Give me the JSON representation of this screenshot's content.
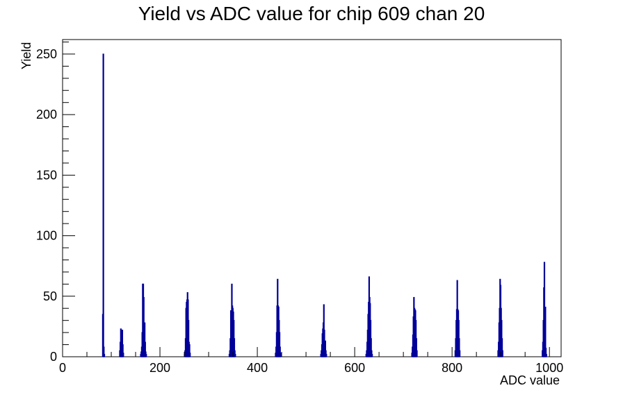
{
  "chart_data": {
    "type": "bar",
    "title": "Yield vs ADC value for chip 609 chan 20",
    "xlabel": "ADC value",
    "ylabel": "Yield",
    "xlim": [
      0,
      1024
    ],
    "ylim": [
      0,
      262
    ],
    "x_ticks": [
      0,
      200,
      400,
      600,
      800,
      1000
    ],
    "y_ticks": [
      0,
      50,
      100,
      150,
      200,
      250
    ],
    "bin_width": 1,
    "color": "#000099",
    "grid": false,
    "legend": "none",
    "bins": [
      [
        82,
        35
      ],
      [
        83,
        250
      ],
      [
        84,
        8
      ],
      [
        85,
        2
      ],
      [
        117,
        5
      ],
      [
        118,
        12
      ],
      [
        119,
        23
      ],
      [
        120,
        22
      ],
      [
        121,
        14
      ],
      [
        122,
        22
      ],
      [
        123,
        10
      ],
      [
        124,
        3
      ],
      [
        160,
        2
      ],
      [
        161,
        4
      ],
      [
        162,
        8
      ],
      [
        163,
        20
      ],
      [
        164,
        60
      ],
      [
        165,
        60
      ],
      [
        166,
        49
      ],
      [
        167,
        25
      ],
      [
        168,
        28
      ],
      [
        169,
        12
      ],
      [
        170,
        4
      ],
      [
        171,
        2
      ],
      [
        250,
        2
      ],
      [
        251,
        5
      ],
      [
        252,
        15
      ],
      [
        253,
        40
      ],
      [
        254,
        45
      ],
      [
        255,
        47
      ],
      [
        256,
        53
      ],
      [
        257,
        47
      ],
      [
        258,
        30
      ],
      [
        259,
        12
      ],
      [
        260,
        10
      ],
      [
        261,
        3
      ],
      [
        342,
        2
      ],
      [
        343,
        5
      ],
      [
        344,
        15
      ],
      [
        345,
        38
      ],
      [
        346,
        38
      ],
      [
        347,
        60
      ],
      [
        348,
        42
      ],
      [
        349,
        40
      ],
      [
        350,
        37
      ],
      [
        351,
        30
      ],
      [
        352,
        15
      ],
      [
        353,
        5
      ],
      [
        354,
        2
      ],
      [
        437,
        3
      ],
      [
        438,
        8
      ],
      [
        439,
        20
      ],
      [
        440,
        42
      ],
      [
        441,
        64
      ],
      [
        442,
        42
      ],
      [
        443,
        41
      ],
      [
        444,
        30
      ],
      [
        445,
        20
      ],
      [
        446,
        8
      ],
      [
        447,
        3
      ],
      [
        530,
        2
      ],
      [
        531,
        5
      ],
      [
        532,
        10
      ],
      [
        533,
        19
      ],
      [
        534,
        23
      ],
      [
        535,
        28
      ],
      [
        536,
        43
      ],
      [
        537,
        22
      ],
      [
        538,
        13
      ],
      [
        539,
        13
      ],
      [
        540,
        5
      ],
      [
        541,
        2
      ],
      [
        623,
        2
      ],
      [
        624,
        5
      ],
      [
        625,
        12
      ],
      [
        626,
        22
      ],
      [
        627,
        35
      ],
      [
        628,
        45
      ],
      [
        629,
        66
      ],
      [
        630,
        49
      ],
      [
        631,
        44
      ],
      [
        632,
        30
      ],
      [
        633,
        15
      ],
      [
        634,
        5
      ],
      [
        635,
        2
      ],
      [
        717,
        3
      ],
      [
        718,
        8
      ],
      [
        719,
        18
      ],
      [
        720,
        33
      ],
      [
        721,
        49
      ],
      [
        722,
        40
      ],
      [
        723,
        39
      ],
      [
        724,
        38
      ],
      [
        725,
        30
      ],
      [
        726,
        15
      ],
      [
        727,
        5
      ],
      [
        806,
        5
      ],
      [
        807,
        15
      ],
      [
        808,
        30
      ],
      [
        809,
        39
      ],
      [
        810,
        63
      ],
      [
        811,
        39
      ],
      [
        812,
        38
      ],
      [
        813,
        30
      ],
      [
        814,
        15
      ],
      [
        815,
        5
      ],
      [
        894,
        5
      ],
      [
        895,
        12
      ],
      [
        896,
        28
      ],
      [
        897,
        40
      ],
      [
        898,
        64
      ],
      [
        899,
        59
      ],
      [
        900,
        40
      ],
      [
        901,
        30
      ],
      [
        902,
        15
      ],
      [
        903,
        5
      ],
      [
        985,
        5
      ],
      [
        986,
        12
      ],
      [
        987,
        30
      ],
      [
        988,
        57
      ],
      [
        989,
        78
      ],
      [
        990,
        40
      ],
      [
        991,
        41
      ],
      [
        992,
        7
      ],
      [
        993,
        2
      ]
    ]
  }
}
